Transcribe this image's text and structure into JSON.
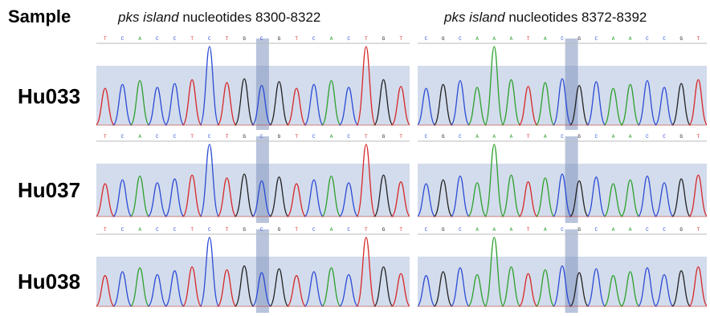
{
  "header": {
    "sample_label": "Sample",
    "panel_left_italic": "pks island",
    "panel_left_rest": " nucleotides 8300-8322",
    "panel_right_italic": "pks island",
    "panel_right_rest": " nucleotides 8372-8392"
  },
  "samples": [
    "Hu033",
    "Hu037",
    "Hu038"
  ],
  "base_sequences": {
    "left": "TCACCTCTGCGTCACTGT",
    "right": "CGCAAATACGCAACCGT"
  },
  "colors": {
    "A": "#2ca02c",
    "C": "#2b4bd6",
    "G": "#222222",
    "T": "#d62828",
    "highlight_band": "#aebfdc",
    "highlight_column": "#7f94c0"
  }
}
